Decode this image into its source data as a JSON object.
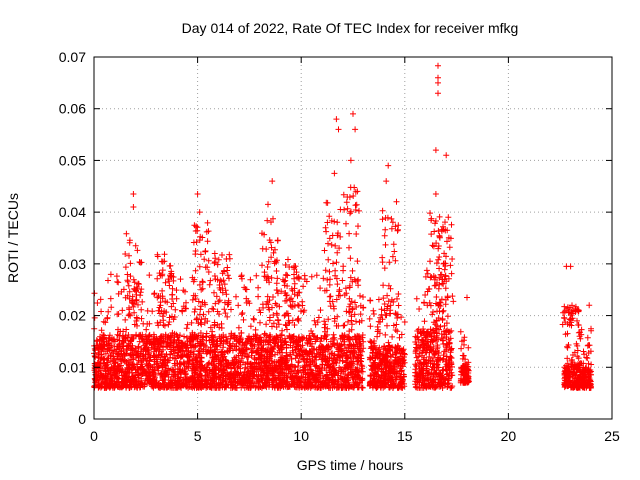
{
  "chart_data": {
    "type": "scatter",
    "title": "Day 014 of 2022, Rate Of TEC Index for receiver mfkg",
    "xlabel": "GPS time / hours",
    "ylabel": "ROTI / TECUs",
    "xlim": [
      0,
      25
    ],
    "ylim": [
      0,
      0.07
    ],
    "x_ticks": [
      "0",
      "5",
      "10",
      "15",
      "20",
      "25"
    ],
    "y_ticks": [
      "0",
      "0.01",
      "0.02",
      "0.03",
      "0.04",
      "0.05",
      "0.06",
      "0.07"
    ],
    "grid": true,
    "marker": "+",
    "color": "#ff0000",
    "segments": [
      {
        "x_start": 0.0,
        "x_end": 13.0,
        "y_base": 0.004,
        "y_top": 0.026
      },
      {
        "x_start": 13.3,
        "x_end": 15.0,
        "y_base": 0.004,
        "y_top": 0.022
      },
      {
        "x_start": 15.5,
        "x_end": 17.3,
        "y_base": 0.004,
        "y_top": 0.028
      },
      {
        "x_start": 17.7,
        "x_end": 18.1,
        "y_base": 0.005,
        "y_top": 0.016
      },
      {
        "x_start": 22.7,
        "x_end": 24.0,
        "y_base": 0.004,
        "y_top": 0.016
      }
    ],
    "peaks": [
      {
        "x": 1.9,
        "y": 0.0435
      },
      {
        "x": 1.9,
        "y": 0.041
      },
      {
        "x": 5.0,
        "y": 0.0435
      },
      {
        "x": 5.1,
        "y": 0.04
      },
      {
        "x": 8.6,
        "y": 0.046
      },
      {
        "x": 8.4,
        "y": 0.0415
      },
      {
        "x": 11.7,
        "y": 0.058
      },
      {
        "x": 11.8,
        "y": 0.056
      },
      {
        "x": 12.5,
        "y": 0.059
      },
      {
        "x": 12.6,
        "y": 0.056
      },
      {
        "x": 12.4,
        "y": 0.05
      },
      {
        "x": 11.6,
        "y": 0.0475
      },
      {
        "x": 14.2,
        "y": 0.049
      },
      {
        "x": 14.1,
        "y": 0.046
      },
      {
        "x": 14.6,
        "y": 0.042
      },
      {
        "x": 16.6,
        "y": 0.0683
      },
      {
        "x": 16.6,
        "y": 0.066
      },
      {
        "x": 16.6,
        "y": 0.065
      },
      {
        "x": 16.6,
        "y": 0.063
      },
      {
        "x": 16.5,
        "y": 0.052
      },
      {
        "x": 17.0,
        "y": 0.051
      },
      {
        "x": 16.5,
        "y": 0.0435
      },
      {
        "x": 17.1,
        "y": 0.039
      },
      {
        "x": 23.0,
        "y": 0.0295
      },
      {
        "x": 22.8,
        "y": 0.0295
      },
      {
        "x": 23.9,
        "y": 0.022
      },
      {
        "x": 18.0,
        "y": 0.0235
      }
    ]
  }
}
